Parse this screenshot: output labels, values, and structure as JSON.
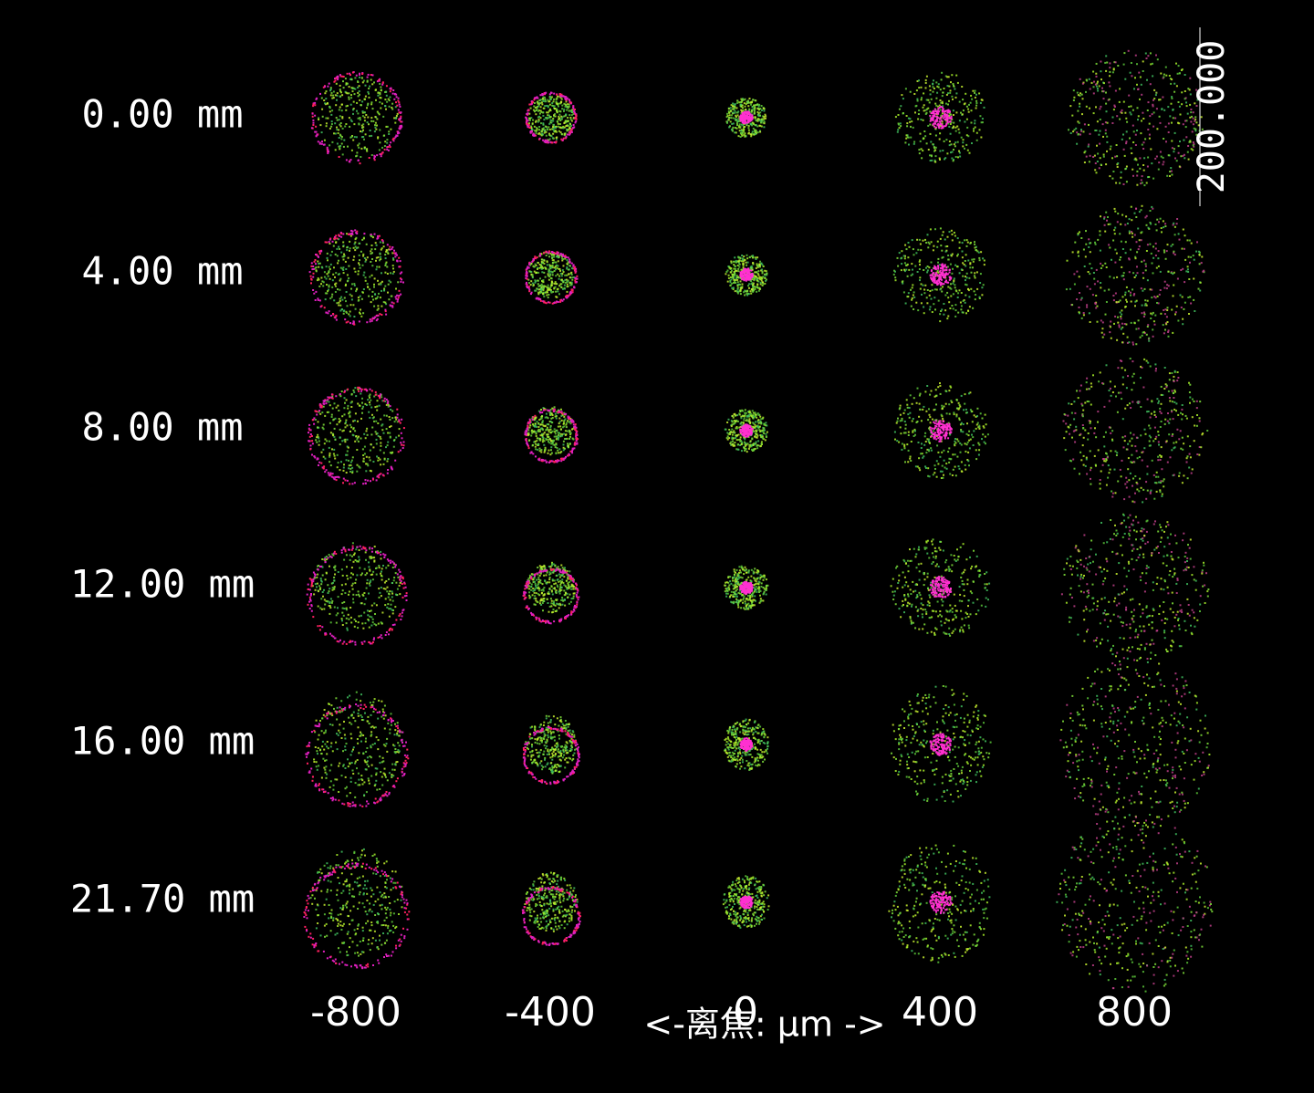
{
  "field_labels": [
    "0.00 mm",
    "4.00 mm",
    "8.00 mm",
    "12.00 mm",
    "16.00 mm",
    "21.70 mm"
  ],
  "defocus_labels": [
    "-800",
    "-400",
    "0",
    "400",
    "800"
  ],
  "scale_label": "200.000",
  "axis_label": "<-离焦: μm ->"
}
